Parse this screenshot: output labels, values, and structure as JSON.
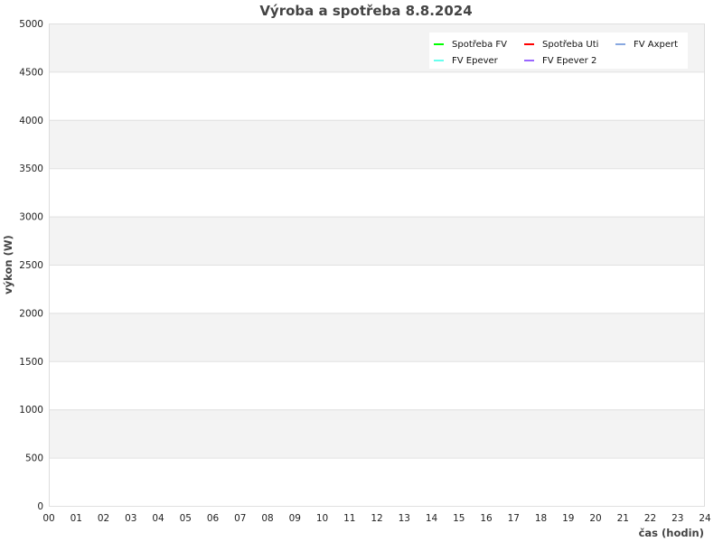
{
  "chart_data": {
    "type": "line",
    "title": "Výroba a spotřeba 8.8.2024",
    "xlabel": "čas (hodin)",
    "ylabel": "výkon (W)",
    "xlim": [
      0,
      24
    ],
    "ylim": [
      0,
      5000
    ],
    "x_ticks": [
      "00",
      "01",
      "02",
      "03",
      "04",
      "05",
      "06",
      "07",
      "08",
      "09",
      "10",
      "11",
      "12",
      "13",
      "14",
      "15",
      "16",
      "17",
      "18",
      "19",
      "20",
      "21",
      "22",
      "23",
      "24"
    ],
    "y_ticks": [
      "0",
      "500",
      "1000",
      "1500",
      "2000",
      "2500",
      "3000",
      "3500",
      "4000",
      "4500",
      "5000"
    ],
    "grid": true,
    "legend_position": "top-right",
    "series": [
      {
        "name": "Spotřeba FV",
        "color": "#00ff00",
        "values": []
      },
      {
        "name": "Spotřeba Uti",
        "color": "#ff0000",
        "values": []
      },
      {
        "name": "FV Axpert",
        "color": "#88a8e0",
        "values": []
      },
      {
        "name": "FV Epever",
        "color": "#66ffee",
        "values": []
      },
      {
        "name": "FV Epever 2",
        "color": "#9966ff",
        "values": []
      }
    ]
  }
}
